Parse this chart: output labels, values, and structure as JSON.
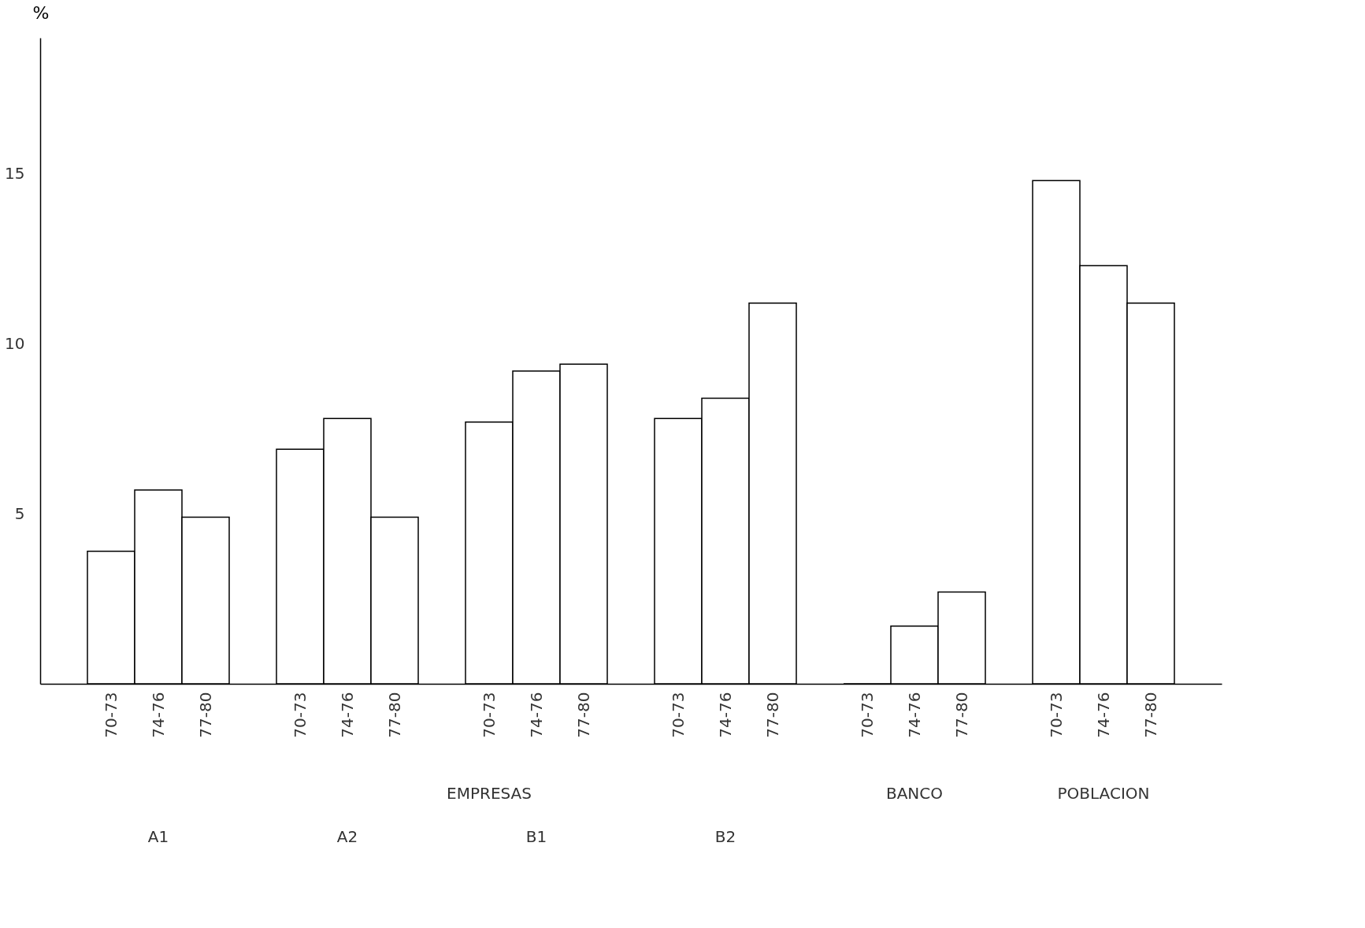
{
  "chart_data": {
    "type": "bar",
    "ylabel": "%",
    "categories": [
      "70-73",
      "74-76",
      "77-80",
      "70-73",
      "74-76",
      "77-80",
      "70-73",
      "74-76",
      "77-80",
      "70-73",
      "74-76",
      "77-80",
      "70-73",
      "74-76",
      "77-80",
      "70-73",
      "74-76",
      "77-80"
    ],
    "values": [
      3.9,
      5.7,
      4.9,
      6.9,
      7.8,
      4.9,
      7.7,
      9.2,
      9.4,
      7.8,
      8.4,
      11.2,
      0,
      1.7,
      2.7,
      14.8,
      12.3,
      11.2
    ],
    "color": "#ffffff",
    "ylim": [
      0,
      19
    ],
    "yticks": [
      5,
      10,
      15
    ],
    "grid": false,
    "annotations": [
      "EMPRESAS",
      "A1",
      "A2",
      "B1",
      "B2",
      "BANCO",
      "POBLACION"
    ]
  }
}
